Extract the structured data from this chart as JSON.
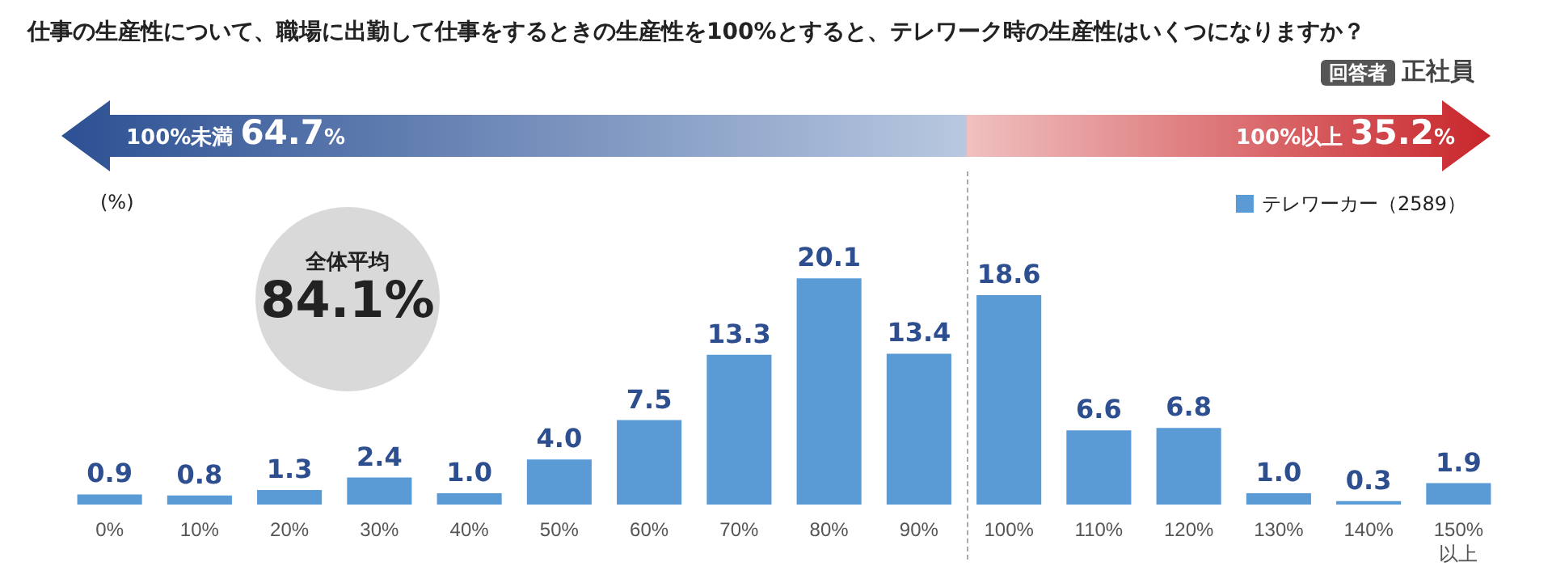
{
  "chart_data": {
    "type": "bar",
    "title": "仕事の生産性について、職場に出勤して仕事をするときの生産性を100%とすると、テレワーク時の生産性はいくつになりますか？",
    "ylabel": "(%)",
    "categories": [
      "0%",
      "10%",
      "20%",
      "30%",
      "40%",
      "50%",
      "60%",
      "70%",
      "80%",
      "90%",
      "100%",
      "110%",
      "120%",
      "130%",
      "140%",
      "150%\n以上"
    ],
    "series": [
      {
        "name": "テレワーカー（2589）",
        "color": "#5b9bd5",
        "values": [
          0.9,
          0.8,
          1.3,
          2.4,
          1.0,
          4.0,
          7.5,
          13.3,
          20.1,
          13.4,
          18.6,
          6.6,
          6.8,
          1.0,
          0.3,
          1.9
        ],
        "value_labels": [
          "0.9",
          "0.8",
          "1.3",
          "2.4",
          "1.0",
          "4.0",
          "7.5",
          "13.3",
          "20.1",
          "13.4",
          "18.6",
          "6.6",
          "6.8",
          "1.0",
          "0.3",
          "1.9"
        ]
      }
    ],
    "legend": "top right",
    "annotations": [
      "回答者 正社員",
      "100%未満 64.7%",
      "100%以上 35.2%",
      "全体平均 84.1%"
    ]
  }
}
